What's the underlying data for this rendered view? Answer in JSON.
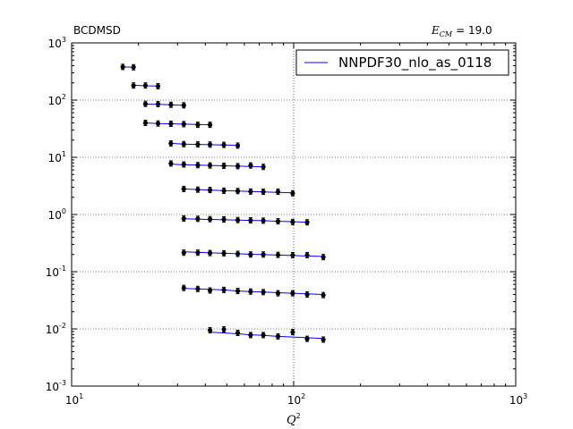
{
  "chart_data": {
    "type": "scatter",
    "title_left": "BCDMSD",
    "title_right_symbol": "E",
    "title_right_subscript": "CM",
    "title_right_value": "= 19.0",
    "xlabel": "Q",
    "xlabel_superscript": "2",
    "ylabel": "",
    "xscale": "log",
    "yscale": "log",
    "xlim": [
      10,
      1000
    ],
    "ylim": [
      0.001,
      1000
    ],
    "x_ticks": [
      {
        "value": 10,
        "base": "10",
        "exp": "1"
      },
      {
        "value": 100,
        "base": "10",
        "exp": "2"
      },
      {
        "value": 1000,
        "base": "10",
        "exp": "3"
      }
    ],
    "y_ticks": [
      {
        "value": 0.001,
        "base": "10",
        "exp": "-3"
      },
      {
        "value": 0.01,
        "base": "10",
        "exp": "-2"
      },
      {
        "value": 0.1,
        "base": "10",
        "exp": "-1"
      },
      {
        "value": 1,
        "base": "10",
        "exp": "0"
      },
      {
        "value": 10,
        "base": "10",
        "exp": "1"
      },
      {
        "value": 100,
        "base": "10",
        "exp": "2"
      },
      {
        "value": 1000,
        "base": "10",
        "exp": "3"
      }
    ],
    "grid": true,
    "legend": {
      "placement": "top-right",
      "entries": [
        {
          "name": "NNPDF30_nlo_as_0118",
          "color": "#0000ff"
        }
      ]
    },
    "theory_color": "#0000ff",
    "data_color": "#000000",
    "series": [
      {
        "x": [
          17,
          19
        ],
        "y": [
          380,
          375
        ],
        "theory": [
          380,
          375
        ]
      },
      {
        "x": [
          19,
          21.5,
          24.5
        ],
        "y": [
          180,
          180,
          175
        ],
        "theory": [
          182,
          178,
          176
        ]
      },
      {
        "x": [
          21.5,
          24.5,
          28,
          32
        ],
        "y": [
          86,
          85,
          83,
          81
        ],
        "theory": [
          85,
          84,
          83,
          81
        ]
      },
      {
        "x": [
          21.5,
          24.5,
          28,
          32,
          37,
          42
        ],
        "y": [
          40,
          39,
          38.5,
          38,
          37,
          37
        ],
        "theory": [
          40,
          39,
          38.5,
          38,
          37.5,
          37
        ]
      },
      {
        "x": [
          28,
          32,
          37,
          42,
          48.5,
          56
        ],
        "y": [
          17.5,
          17,
          16.8,
          16.7,
          16.5,
          16
        ],
        "theory": [
          17.5,
          17,
          16.8,
          16.6,
          16.4,
          16.2
        ]
      },
      {
        "x": [
          28,
          32,
          37,
          42,
          48.5,
          56,
          64,
          73
        ],
        "y": [
          7.8,
          7.5,
          7.3,
          7.2,
          7.1,
          7,
          7.2,
          6.8
        ],
        "theory": [
          7.6,
          7.4,
          7.3,
          7.2,
          7.1,
          7,
          6.9,
          6.8
        ]
      },
      {
        "x": [
          32,
          37,
          42,
          48.5,
          56,
          64,
          73,
          85,
          99
        ],
        "y": [
          2.8,
          2.72,
          2.68,
          2.6,
          2.57,
          2.52,
          2.5,
          2.5,
          2.35
        ],
        "theory": [
          2.8,
          2.73,
          2.67,
          2.62,
          2.57,
          2.52,
          2.48,
          2.44,
          2.4
        ]
      },
      {
        "x": [
          32,
          37,
          42,
          48.5,
          56,
          64,
          73,
          85,
          99,
          115
        ],
        "y": [
          0.85,
          0.84,
          0.83,
          0.82,
          0.8,
          0.79,
          0.78,
          0.76,
          0.74,
          0.73
        ],
        "theory": [
          0.84,
          0.83,
          0.82,
          0.81,
          0.8,
          0.79,
          0.78,
          0.76,
          0.75,
          0.73
        ]
      },
      {
        "x": [
          32,
          37,
          42,
          48.5,
          56,
          64,
          73,
          85,
          99,
          115,
          136
        ],
        "y": [
          0.215,
          0.215,
          0.212,
          0.21,
          0.205,
          0.2,
          0.2,
          0.197,
          0.195,
          0.195,
          0.18
        ],
        "theory": [
          0.222,
          0.218,
          0.214,
          0.21,
          0.206,
          0.202,
          0.199,
          0.195,
          0.192,
          0.188,
          0.185
        ]
      },
      {
        "x": [
          32,
          37,
          42,
          48.5,
          56,
          64,
          73,
          85,
          99,
          115,
          136
        ],
        "y": [
          0.052,
          0.05,
          0.047,
          0.048,
          0.046,
          0.045,
          0.044,
          0.042,
          0.042,
          0.04,
          0.039
        ],
        "theory": [
          0.051,
          0.05,
          0.049,
          0.048,
          0.046,
          0.045,
          0.044,
          0.043,
          0.042,
          0.041,
          0.04
        ]
      },
      {
        "x": [
          42,
          48.5,
          56,
          64,
          73,
          85,
          99,
          115,
          136
        ],
        "y": [
          0.0095,
          0.0098,
          0.0085,
          0.0078,
          0.0078,
          0.0074,
          0.0088,
          0.0067,
          0.0065
        ],
        "theory": [
          0.0088,
          0.0085,
          0.0082,
          0.0079,
          0.0077,
          0.0074,
          0.0072,
          0.007,
          0.0068
        ]
      }
    ]
  }
}
